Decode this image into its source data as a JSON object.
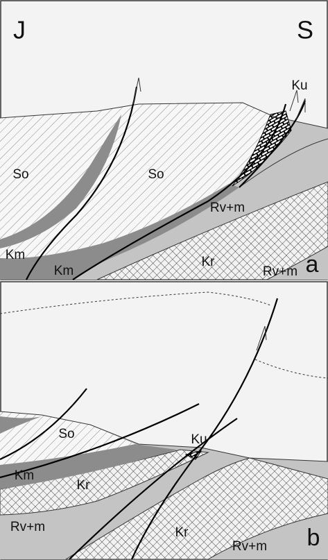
{
  "panel_a": {
    "label": "a",
    "left": "J",
    "right": "S",
    "units": [
      "So",
      "So",
      "Km",
      "Km",
      "Ku",
      "Rv+m",
      "Kr",
      "Rv+m"
    ]
  },
  "panel_b": {
    "label": "b",
    "units": [
      "So",
      "Ku",
      "Km",
      "Kr",
      "Rv+m",
      "Kr",
      "Rv+m"
    ]
  }
}
